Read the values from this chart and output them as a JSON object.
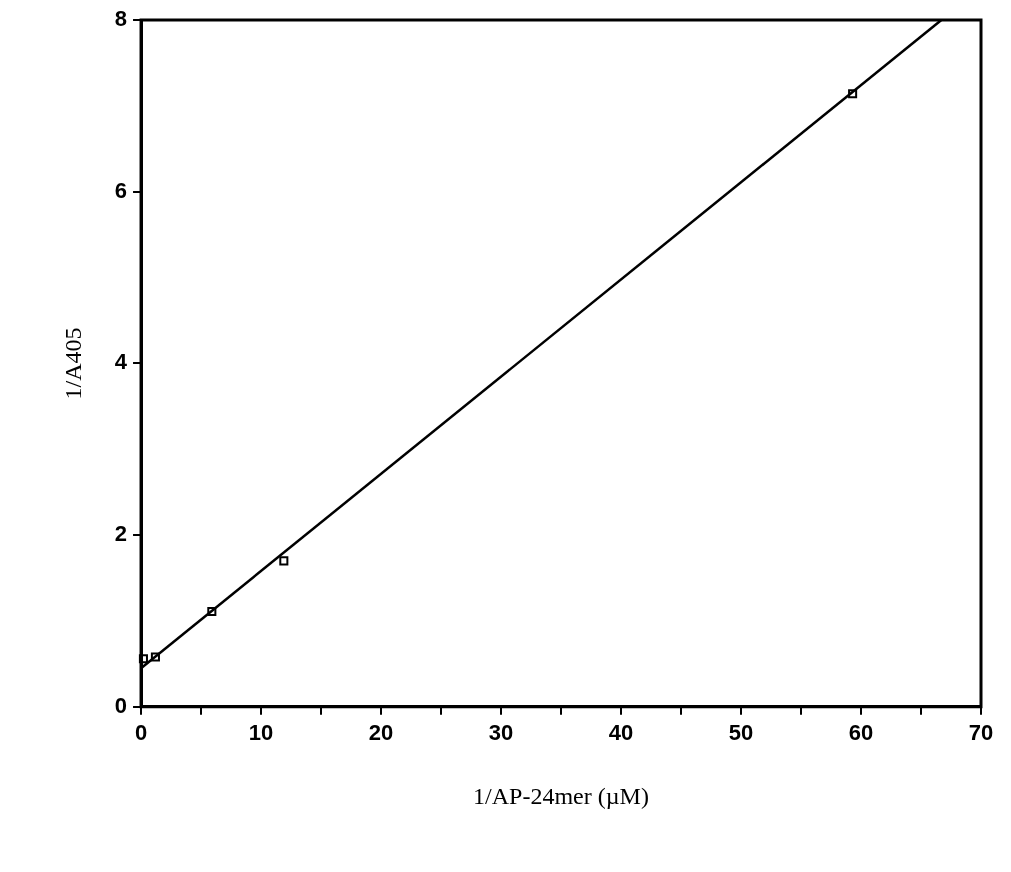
{
  "chart_data": {
    "type": "scatter",
    "xlabel": "1/AP-24mer (µM)",
    "ylabel": "1/A405",
    "xlim": [
      0,
      70
    ],
    "ylim": [
      0,
      8
    ],
    "xticks": [
      0,
      {
        "value": 5,
        "label": null
      },
      10,
      {
        "value": 15,
        "label": null
      },
      20,
      {
        "value": 25,
        "label": null
      },
      30,
      {
        "value": 35,
        "label": null
      },
      40,
      {
        "value": 45,
        "label": null
      },
      50,
      {
        "value": 55,
        "label": null
      },
      60,
      {
        "value": 65,
        "label": null
      },
      70
    ],
    "yticks": [
      0,
      2,
      4,
      6,
      8
    ],
    "grid": false,
    "legend": false,
    "marker": "square",
    "series": [
      {
        "type": "scatter",
        "color": "#000000",
        "x": [
          0.2,
          1.2,
          5.9,
          11.9,
          59.3
        ],
        "values": [
          0.56,
          0.58,
          1.11,
          1.7,
          7.14
        ]
      },
      {
        "type": "line",
        "color": "#000000",
        "marker": "none",
        "line_style": "solid",
        "x": [
          0,
          66.7
        ],
        "values": [
          0.45,
          8
        ]
      }
    ]
  }
}
